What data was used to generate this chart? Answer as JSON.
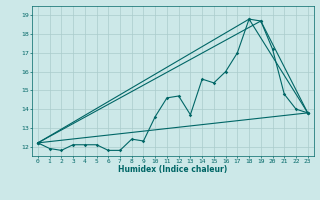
{
  "title": "",
  "xlabel": "Humidex (Indice chaleur)",
  "background_color": "#cce8e8",
  "line_color": "#006666",
  "grid_color": "#aacccc",
  "xlim": [
    -0.5,
    23.5
  ],
  "ylim": [
    11.5,
    19.5
  ],
  "yticks": [
    12,
    13,
    14,
    15,
    16,
    17,
    18,
    19
  ],
  "xticks": [
    0,
    1,
    2,
    3,
    4,
    5,
    6,
    7,
    8,
    9,
    10,
    11,
    12,
    13,
    14,
    15,
    16,
    17,
    18,
    19,
    20,
    21,
    22,
    23
  ],
  "series": [
    {
      "x": [
        0,
        1,
        2,
        3,
        4,
        5,
        6,
        7,
        8,
        9,
        10,
        11,
        12,
        13,
        14,
        15,
        16,
        17,
        18,
        19,
        20,
        21,
        22,
        23
      ],
      "y": [
        12.2,
        11.9,
        11.8,
        12.1,
        12.1,
        12.1,
        11.8,
        11.8,
        12.4,
        12.3,
        13.6,
        14.6,
        14.7,
        13.7,
        15.6,
        15.4,
        16.0,
        17.0,
        18.8,
        18.7,
        17.2,
        14.8,
        14.0,
        13.8
      ]
    },
    {
      "x": [
        0,
        23
      ],
      "y": [
        12.2,
        13.8
      ]
    },
    {
      "x": [
        0,
        18,
        23
      ],
      "y": [
        12.2,
        18.8,
        13.8
      ]
    },
    {
      "x": [
        0,
        19,
        23
      ],
      "y": [
        12.2,
        18.7,
        13.8
      ]
    }
  ]
}
